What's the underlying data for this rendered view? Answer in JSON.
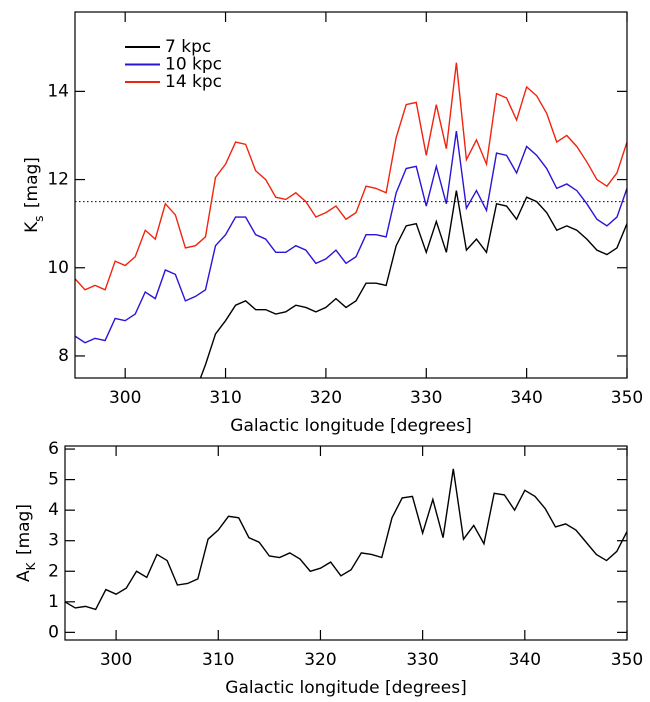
{
  "chart_data": [
    {
      "type": "line",
      "xlabel": "Galactic longitude [degrees]",
      "ylabel": [
        "K",
        "s",
        " [mag]"
      ],
      "xlim": [
        295,
        350
      ],
      "ylim": [
        7.5,
        15.8
      ],
      "xticks": [
        300,
        310,
        320,
        330,
        340,
        350
      ],
      "yticks": [
        8,
        10,
        12,
        14
      ],
      "hline": 11.5,
      "legend": "upper left",
      "x": [
        295,
        296,
        297,
        298,
        299,
        300,
        301,
        302,
        303,
        304,
        305,
        306,
        307,
        308,
        309,
        310,
        311,
        312,
        313,
        314,
        315,
        316,
        317,
        318,
        319,
        320,
        321,
        322,
        323,
        324,
        325,
        326,
        327,
        328,
        329,
        330,
        331,
        332,
        333,
        334,
        335,
        336,
        337,
        338,
        339,
        340,
        341,
        342,
        343,
        344,
        345,
        346,
        347,
        348,
        349,
        350
      ],
      "series": [
        {
          "name": "7 kpc",
          "color": "#000000",
          "values": [
            null,
            null,
            null,
            null,
            null,
            null,
            null,
            null,
            null,
            null,
            null,
            null,
            7.2,
            7.8,
            8.5,
            8.8,
            9.15,
            9.25,
            9.05,
            9.05,
            8.95,
            9.0,
            9.15,
            9.1,
            9.0,
            9.1,
            9.3,
            9.1,
            9.25,
            9.65,
            9.65,
            9.6,
            10.5,
            10.95,
            11.0,
            10.35,
            11.05,
            10.35,
            11.75,
            10.4,
            10.65,
            10.35,
            11.45,
            11.4,
            11.1,
            11.6,
            11.5,
            11.25,
            10.85,
            10.95,
            10.85,
            10.65,
            10.4,
            10.3,
            10.45,
            11.0
          ]
        },
        {
          "name": "10 kpc",
          "color": "#2a14d6",
          "values": [
            8.45,
            8.3,
            8.4,
            8.35,
            8.85,
            8.8,
            8.95,
            9.45,
            9.3,
            9.95,
            9.85,
            9.25,
            9.35,
            9.5,
            10.5,
            10.75,
            11.15,
            11.15,
            10.75,
            10.65,
            10.35,
            10.35,
            10.5,
            10.4,
            10.1,
            10.2,
            10.4,
            10.1,
            10.25,
            10.75,
            10.75,
            10.7,
            11.7,
            12.25,
            12.3,
            11.4,
            12.3,
            11.45,
            13.1,
            11.35,
            11.75,
            11.3,
            12.6,
            12.55,
            12.15,
            12.75,
            12.55,
            12.25,
            11.8,
            11.9,
            11.75,
            11.45,
            11.1,
            10.95,
            11.15,
            11.8
          ]
        },
        {
          "name": "14 kpc",
          "color": "#f0240e",
          "values": [
            9.75,
            9.5,
            9.6,
            9.5,
            10.15,
            10.05,
            10.25,
            10.85,
            10.65,
            11.45,
            11.2,
            10.45,
            10.5,
            10.7,
            12.05,
            12.35,
            12.85,
            12.8,
            12.2,
            12.0,
            11.6,
            11.55,
            11.7,
            11.5,
            11.15,
            11.25,
            11.4,
            11.1,
            11.25,
            11.85,
            11.8,
            11.7,
            12.95,
            13.7,
            13.75,
            12.55,
            13.7,
            12.7,
            14.65,
            12.45,
            12.9,
            12.35,
            13.95,
            13.85,
            13.35,
            14.1,
            13.9,
            13.5,
            12.85,
            13.0,
            12.75,
            12.4,
            12.0,
            11.85,
            12.15,
            12.85
          ]
        }
      ]
    },
    {
      "type": "line",
      "xlabel": "Galactic longitude [degrees]",
      "ylabel": [
        "A",
        "K",
        " [mag]"
      ],
      "xlim": [
        295,
        350
      ],
      "ylim": [
        -0.25,
        6.1
      ],
      "xticks": [
        300,
        310,
        320,
        330,
        340,
        350
      ],
      "yticks": [
        0,
        1,
        2,
        3,
        4,
        5,
        6
      ],
      "x": [
        295,
        296,
        297,
        298,
        299,
        300,
        301,
        302,
        303,
        304,
        305,
        306,
        307,
        308,
        309,
        310,
        311,
        312,
        313,
        314,
        315,
        316,
        317,
        318,
        319,
        320,
        321,
        322,
        323,
        324,
        325,
        326,
        327,
        328,
        329,
        330,
        331,
        332,
        333,
        334,
        335,
        336,
        337,
        338,
        339,
        340,
        341,
        342,
        343,
        344,
        345,
        346,
        347,
        348,
        349,
        350
      ],
      "series": [
        {
          "color": "#000000",
          "values": [
            1.0,
            0.8,
            0.85,
            0.75,
            1.4,
            1.25,
            1.45,
            2.0,
            1.8,
            2.55,
            2.35,
            1.55,
            1.6,
            1.75,
            3.05,
            3.35,
            3.8,
            3.75,
            3.1,
            2.95,
            2.5,
            2.45,
            2.6,
            2.4,
            2.0,
            2.1,
            2.3,
            1.85,
            2.05,
            2.6,
            2.55,
            2.45,
            3.75,
            4.4,
            4.45,
            3.25,
            4.35,
            3.1,
            5.35,
            3.05,
            3.5,
            2.9,
            4.55,
            4.5,
            4.0,
            4.65,
            4.45,
            4.05,
            3.45,
            3.55,
            3.35,
            2.95,
            2.55,
            2.35,
            2.65,
            3.3
          ]
        }
      ]
    }
  ]
}
